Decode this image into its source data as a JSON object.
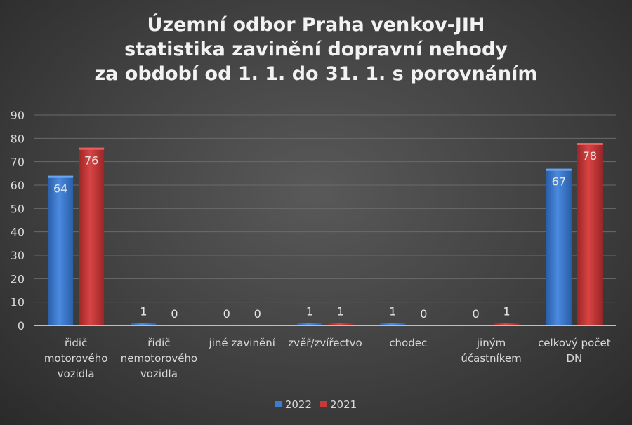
{
  "chart_data": {
    "type": "bar",
    "title": [
      "Územní odbor Praha venkov-JIH",
      "statistika zavinění dopravní nehody",
      "za období od 1. 1. do 31. 1. s porovnáním"
    ],
    "categories": [
      [
        "řidič",
        "motorového",
        "vozidla"
      ],
      [
        "řidič",
        "nemotorového",
        "vozidla"
      ],
      [
        "jiné zavinění"
      ],
      [
        "zvěř/zvířectvo"
      ],
      [
        "chodec"
      ],
      [
        "jiným",
        "účastníkem"
      ],
      [
        "celkový počet",
        "DN"
      ]
    ],
    "series": [
      {
        "name": "2022",
        "color": "#3c7dd2",
        "values": [
          64,
          1,
          0,
          1,
          1,
          0,
          67
        ]
      },
      {
        "name": "2021",
        "color": "#c73a3a",
        "values": [
          76,
          0,
          0,
          1,
          0,
          1,
          78
        ]
      }
    ],
    "ylim": [
      0,
      90
    ],
    "yticks": [
      0,
      10,
      20,
      30,
      40,
      50,
      60,
      70,
      80,
      90
    ],
    "grid": true,
    "legend": "bottom"
  }
}
